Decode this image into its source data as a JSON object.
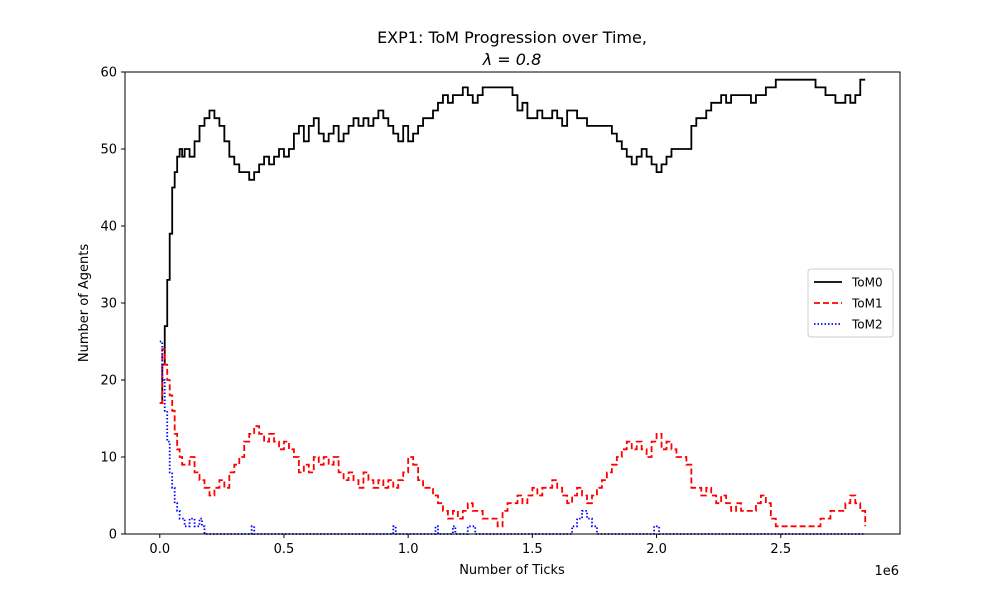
{
  "chart_data": {
    "type": "line",
    "title": "EXP1: ToM Progression over Time,",
    "subtitle": "λ = 0.8",
    "xlabel": "Number of Ticks",
    "ylabel": "Number of Agents",
    "x_offset_label": "1e6",
    "xlim": [
      -0.14,
      2.98
    ],
    "ylim": [
      0,
      60
    ],
    "x_ticks": [
      0.0,
      0.5,
      1.0,
      1.5,
      2.0,
      2.5
    ],
    "x_tick_labels": [
      "0.0",
      "0.5",
      "1.0",
      "1.5",
      "2.0",
      "2.5"
    ],
    "y_ticks": [
      0,
      10,
      20,
      30,
      40,
      50,
      60
    ],
    "y_tick_labels": [
      "0",
      "10",
      "20",
      "30",
      "40",
      "50",
      "60"
    ],
    "grid": false,
    "legend": "center-right",
    "series": [
      {
        "name": "ToM0",
        "color": "#000000",
        "dash": "solid",
        "x": [
          0.0,
          0.01,
          0.02,
          0.03,
          0.04,
          0.05,
          0.06,
          0.07,
          0.08,
          0.09,
          0.1,
          0.12,
          0.14,
          0.16,
          0.18,
          0.2,
          0.22,
          0.24,
          0.26,
          0.28,
          0.3,
          0.32,
          0.34,
          0.36,
          0.38,
          0.4,
          0.42,
          0.44,
          0.46,
          0.48,
          0.5,
          0.52,
          0.54,
          0.56,
          0.58,
          0.6,
          0.62,
          0.64,
          0.66,
          0.68,
          0.7,
          0.72,
          0.74,
          0.76,
          0.78,
          0.8,
          0.82,
          0.84,
          0.86,
          0.88,
          0.9,
          0.92,
          0.94,
          0.96,
          0.98,
          1.0,
          1.02,
          1.04,
          1.06,
          1.08,
          1.1,
          1.12,
          1.14,
          1.16,
          1.18,
          1.2,
          1.22,
          1.24,
          1.26,
          1.28,
          1.3,
          1.32,
          1.34,
          1.36,
          1.38,
          1.4,
          1.42,
          1.44,
          1.46,
          1.48,
          1.5,
          1.52,
          1.54,
          1.56,
          1.58,
          1.6,
          1.62,
          1.64,
          1.66,
          1.68,
          1.7,
          1.72,
          1.74,
          1.76,
          1.78,
          1.8,
          1.82,
          1.84,
          1.86,
          1.88,
          1.9,
          1.92,
          1.94,
          1.96,
          1.98,
          2.0,
          2.02,
          2.04,
          2.06,
          2.08,
          2.1,
          2.12,
          2.14,
          2.16,
          2.18,
          2.2,
          2.22,
          2.24,
          2.26,
          2.28,
          2.3,
          2.32,
          2.34,
          2.36,
          2.38,
          2.4,
          2.42,
          2.44,
          2.46,
          2.48,
          2.5,
          2.52,
          2.54,
          2.56,
          2.58,
          2.6,
          2.62,
          2.64,
          2.66,
          2.68,
          2.7,
          2.72,
          2.74,
          2.76,
          2.78,
          2.8,
          2.82,
          2.84
        ],
        "y": [
          17,
          22,
          27,
          33,
          39,
          45,
          47,
          49,
          50,
          49,
          50,
          49,
          51,
          53,
          54,
          55,
          54,
          53,
          51,
          49,
          48,
          47,
          47,
          46,
          47,
          48,
          49,
          48,
          49,
          50,
          49,
          50,
          52,
          53,
          51,
          53,
          54,
          52,
          51,
          52,
          53,
          51,
          52,
          53,
          54,
          53,
          54,
          53,
          54,
          55,
          54,
          53,
          52,
          51,
          53,
          51,
          52,
          53,
          54,
          54,
          55,
          56,
          57,
          56,
          57,
          57,
          58,
          57,
          56,
          57,
          58,
          58,
          58,
          58,
          58,
          58,
          57,
          55,
          56,
          54,
          54,
          55,
          54,
          54,
          55,
          54,
          53,
          55,
          55,
          54,
          54,
          53,
          53,
          53,
          53,
          53,
          52,
          51,
          50,
          49,
          48,
          49,
          50,
          49,
          48,
          47,
          48,
          49,
          50,
          50,
          50,
          50,
          53,
          54,
          54,
          55,
          56,
          56,
          57,
          56,
          57,
          57,
          57,
          57,
          56,
          57,
          57,
          58,
          58,
          59,
          59,
          59,
          59,
          59,
          59,
          59,
          59,
          58,
          58,
          57,
          57,
          56,
          56,
          57,
          56,
          57,
          59,
          59
        ]
      },
      {
        "name": "ToM1",
        "color": "#ff0000",
        "dash": "dashed",
        "x": [
          0.0,
          0.01,
          0.02,
          0.03,
          0.04,
          0.05,
          0.06,
          0.07,
          0.08,
          0.09,
          0.1,
          0.12,
          0.14,
          0.16,
          0.18,
          0.2,
          0.22,
          0.24,
          0.26,
          0.28,
          0.3,
          0.32,
          0.34,
          0.36,
          0.38,
          0.4,
          0.42,
          0.44,
          0.46,
          0.48,
          0.5,
          0.52,
          0.54,
          0.56,
          0.58,
          0.6,
          0.62,
          0.64,
          0.66,
          0.68,
          0.7,
          0.72,
          0.74,
          0.76,
          0.78,
          0.8,
          0.82,
          0.84,
          0.86,
          0.88,
          0.9,
          0.92,
          0.94,
          0.96,
          0.98,
          1.0,
          1.02,
          1.04,
          1.06,
          1.08,
          1.1,
          1.12,
          1.14,
          1.16,
          1.18,
          1.2,
          1.22,
          1.24,
          1.26,
          1.28,
          1.3,
          1.32,
          1.34,
          1.36,
          1.38,
          1.4,
          1.42,
          1.44,
          1.46,
          1.48,
          1.5,
          1.52,
          1.54,
          1.56,
          1.58,
          1.6,
          1.62,
          1.64,
          1.66,
          1.68,
          1.7,
          1.72,
          1.74,
          1.76,
          1.78,
          1.8,
          1.82,
          1.84,
          1.86,
          1.88,
          1.9,
          1.92,
          1.94,
          1.96,
          1.98,
          2.0,
          2.02,
          2.04,
          2.06,
          2.08,
          2.1,
          2.12,
          2.14,
          2.16,
          2.18,
          2.2,
          2.22,
          2.24,
          2.26,
          2.28,
          2.3,
          2.32,
          2.34,
          2.36,
          2.38,
          2.4,
          2.42,
          2.44,
          2.46,
          2.48,
          2.5,
          2.52,
          2.54,
          2.56,
          2.58,
          2.6,
          2.62,
          2.64,
          2.66,
          2.68,
          2.7,
          2.72,
          2.74,
          2.76,
          2.78,
          2.8,
          2.82,
          2.84
        ],
        "y": [
          17,
          24,
          22,
          20,
          18,
          16,
          13,
          11,
          10,
          9,
          9,
          10,
          8,
          7,
          6,
          5,
          6,
          7,
          6,
          8,
          9,
          10,
          12,
          13,
          14,
          13,
          12,
          13,
          12,
          11,
          12,
          11,
          10,
          8,
          9,
          8,
          10,
          9,
          10,
          9,
          10,
          8,
          7,
          8,
          7,
          6,
          8,
          7,
          6,
          7,
          6,
          7,
          6,
          7,
          8,
          10,
          9,
          7,
          6,
          6,
          5,
          4,
          3,
          2,
          3,
          2,
          3,
          4,
          3,
          3,
          2,
          2,
          2,
          1,
          3,
          4,
          4,
          5,
          4,
          5,
          6,
          5,
          6,
          6,
          7,
          6,
          5,
          4,
          5,
          6,
          5,
          4,
          5,
          6,
          7,
          8,
          9,
          10,
          11,
          12,
          11,
          12,
          11,
          10,
          12,
          13,
          11,
          12,
          11,
          10,
          10,
          9,
          6,
          6,
          5,
          6,
          5,
          4,
          5,
          4,
          3,
          4,
          3,
          3,
          3,
          4,
          5,
          4,
          2,
          1,
          1,
          1,
          1,
          1,
          1,
          1,
          1,
          1,
          2,
          2,
          3,
          3,
          3,
          4,
          5,
          4,
          3,
          1
        ]
      },
      {
        "name": "ToM2",
        "color": "#0000ff",
        "dash": "dotted",
        "x": [
          0.0,
          0.01,
          0.02,
          0.03,
          0.04,
          0.05,
          0.06,
          0.07,
          0.08,
          0.09,
          0.1,
          0.12,
          0.14,
          0.16,
          0.17,
          0.18,
          0.2,
          0.36,
          0.37,
          0.38,
          0.4,
          0.93,
          0.94,
          0.95,
          0.96,
          1.1,
          1.11,
          1.12,
          1.17,
          1.18,
          1.19,
          1.23,
          1.24,
          1.26,
          1.27,
          1.64,
          1.66,
          1.68,
          1.7,
          1.72,
          1.74,
          1.76,
          1.98,
          1.99,
          2.0,
          2.01,
          2.84
        ],
        "y": [
          25,
          20,
          16,
          12,
          8,
          6,
          4,
          3,
          2,
          2,
          1,
          2,
          1,
          2,
          1,
          0,
          0,
          0,
          1,
          0,
          0,
          0,
          1,
          0,
          0,
          0,
          1,
          0,
          0,
          1,
          0,
          0,
          1,
          1,
          0,
          0,
          1,
          2,
          3,
          2,
          1,
          0,
          0,
          1,
          1,
          0,
          0
        ]
      }
    ]
  }
}
